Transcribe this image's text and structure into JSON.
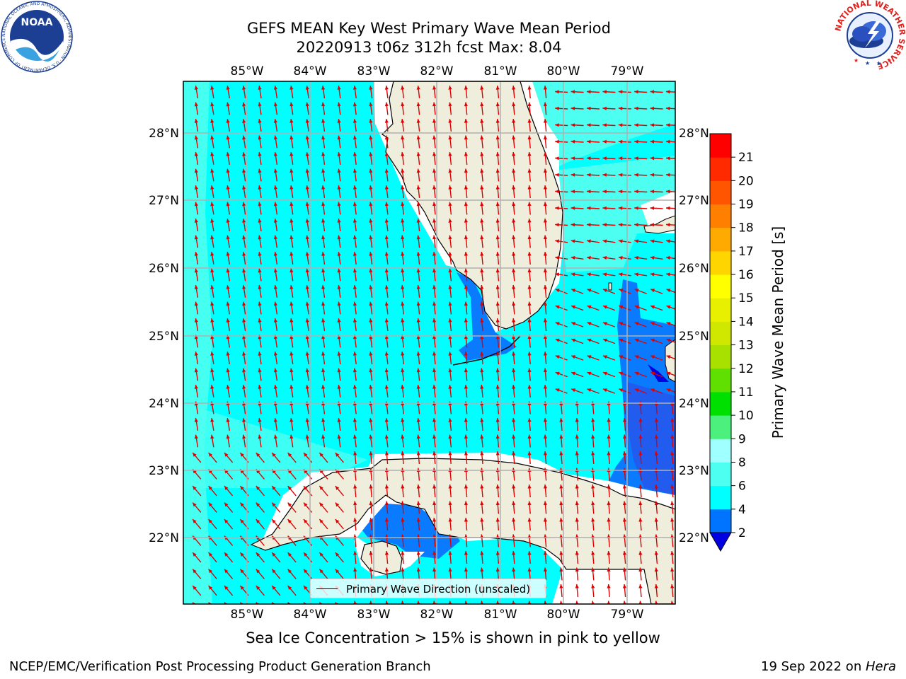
{
  "title": {
    "line1": "GEFS MEAN Key West Primary Wave Mean Period",
    "line2": "20220913 t06z 312h fcst   Max: 8.04"
  },
  "map": {
    "lon_labels": [
      "85°W",
      "84°W",
      "83°W",
      "82°W",
      "81°W",
      "80°W",
      "79°W"
    ],
    "lat_labels": [
      "28°N",
      "27°N",
      "26°N",
      "25°N",
      "24°N",
      "23°N",
      "22°N"
    ],
    "legend_label": "Primary Wave Direction (unscaled)"
  },
  "colorbar": {
    "label": "Primary Wave Mean Period [s]",
    "ticks": [
      "2",
      "4",
      "6",
      "8",
      "9",
      "10",
      "11",
      "12",
      "13",
      "14",
      "15",
      "16",
      "17",
      "18",
      "19",
      "20",
      "21"
    ],
    "colors": [
      "#0073ff",
      "#00ffff",
      "#4dfff0",
      "#a0ffff",
      "#4cf07c",
      "#00e000",
      "#5fe000",
      "#a8e000",
      "#d0e800",
      "#e8f000",
      "#ffff00",
      "#ffd500",
      "#ffaa00",
      "#ff8000",
      "#ff5500",
      "#ff2a00",
      "#ff0000"
    ],
    "under_color": "#0000e0"
  },
  "colors": {
    "ocean_main": "#00ffff",
    "ocean_light": "#4dfff0",
    "ocean_low": "#0a7bff",
    "ocean_dark": "#2a52e8",
    "land": "#efeddc",
    "arrow": "#e00000",
    "grid": "#b0b0b0"
  },
  "logos": {
    "noaa_text": "NOAA",
    "noaa_ring": "NATIONAL OCEANIC AND ATMOSPHERIC ADMINISTRATION · U.S. DEPARTMENT OF COMMERCE",
    "nws_ring": "NATIONAL WEATHER SERVICE"
  },
  "notes": {
    "ice": "Sea Ice Concentration > 15% is shown in pink to yellow"
  },
  "footer": {
    "left": "NCEP/EMC/Verification Post Processing Product Generation Branch",
    "date": "19 Sep 2022 on ",
    "machine": "Hera"
  }
}
